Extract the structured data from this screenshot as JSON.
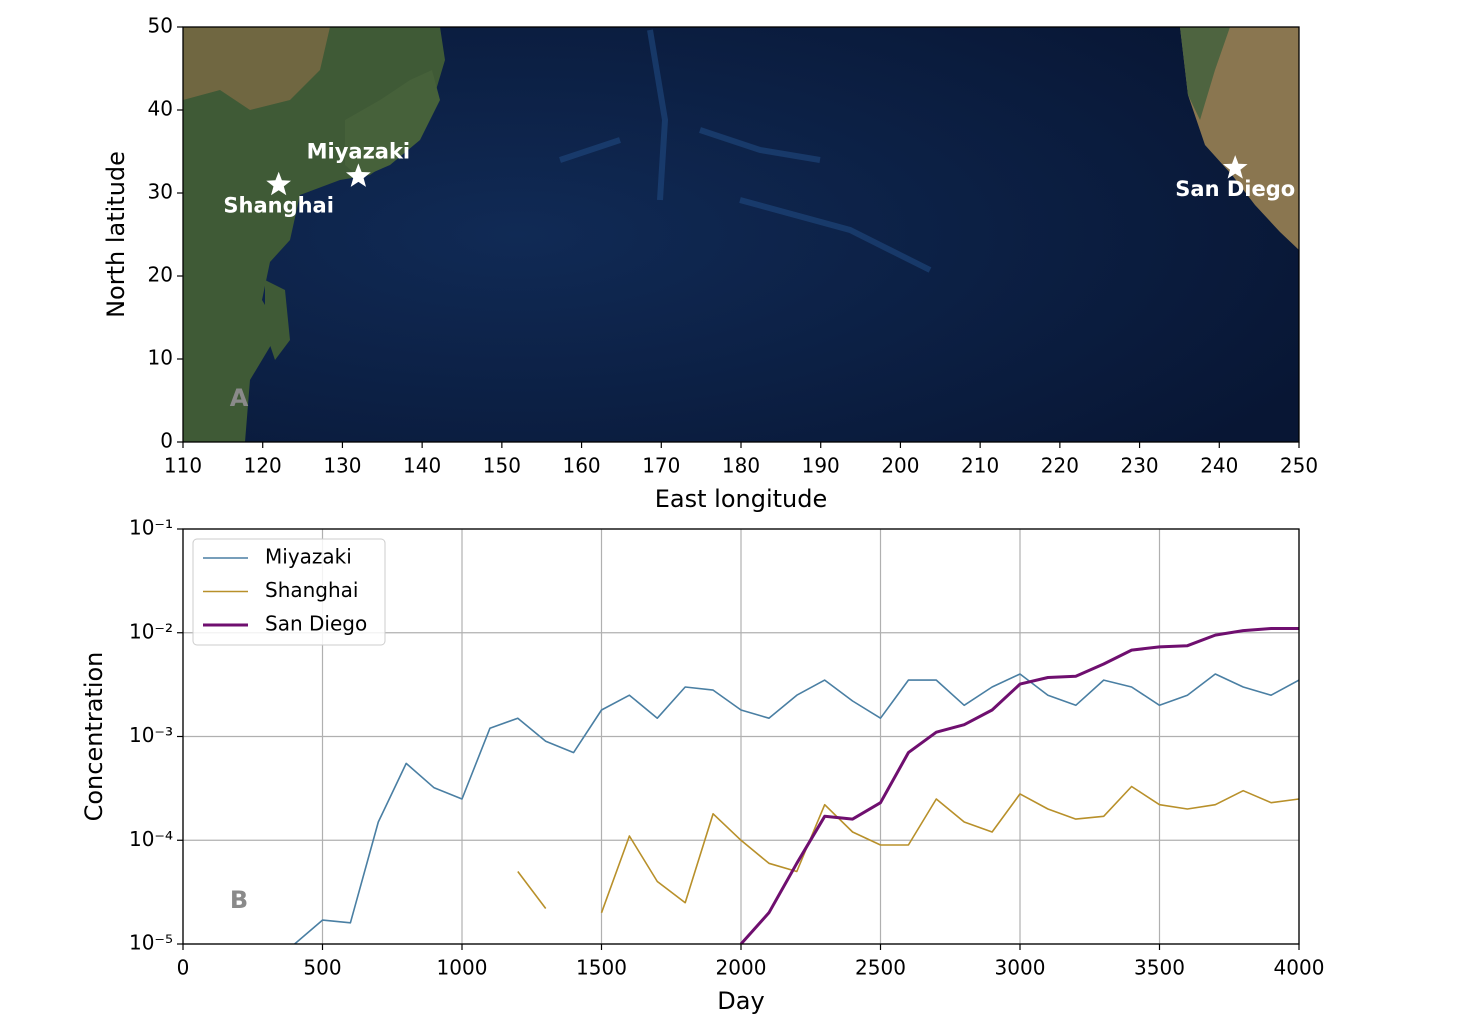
{
  "chart_data": [
    {
      "type": "scatter",
      "xlabel": "East longitude",
      "ylabel": "North latitude",
      "panel_label": "A",
      "xlim": [
        110,
        250
      ],
      "xticks": [
        110,
        120,
        130,
        140,
        150,
        160,
        170,
        180,
        190,
        200,
        210,
        220,
        230,
        240,
        250
      ],
      "ylim": [
        0,
        50
      ],
      "yticks": [
        0,
        10,
        20,
        30,
        40,
        50
      ],
      "marker_color": "#ffffff",
      "points": [
        {
          "label": "Miyazaki",
          "x": 132,
          "y": 32
        },
        {
          "label": "Shanghai",
          "x": 122,
          "y": 31
        },
        {
          "label": "San Diego",
          "x": 242,
          "y": 33
        }
      ]
    },
    {
      "type": "line",
      "xlabel": "Day",
      "ylabel": "Concentration",
      "panel_label": "B",
      "log_y": true,
      "grid": true,
      "legend": "upper left",
      "xlim": [
        0,
        4000
      ],
      "xticks": [
        0,
        500,
        1000,
        1500,
        2000,
        2500,
        3000,
        3500,
        4000
      ],
      "ylim": [
        1e-05,
        0.1
      ],
      "yticks": [
        {
          "value": 1e-05,
          "label": "10⁻⁵"
        },
        {
          "value": 0.0001,
          "label": "10⁻⁴"
        },
        {
          "value": 0.001,
          "label": "10⁻³"
        },
        {
          "value": 0.01,
          "label": "10⁻²"
        },
        {
          "value": 0.1,
          "label": "10⁻¹"
        }
      ],
      "x": [
        0,
        100,
        200,
        300,
        400,
        500,
        600,
        700,
        800,
        900,
        1000,
        1100,
        1200,
        1300,
        1400,
        1500,
        1600,
        1700,
        1800,
        1900,
        2000,
        2100,
        2200,
        2300,
        2400,
        2500,
        2600,
        2700,
        2800,
        2900,
        3000,
        3100,
        3200,
        3300,
        3400,
        3500,
        3600,
        3700,
        3800,
        3900,
        4000
      ],
      "series": [
        {
          "name": "Miyazaki",
          "color": "#4a7fa3",
          "width": 1.6,
          "values": [
            null,
            null,
            null,
            null,
            1e-05,
            1.7e-05,
            1.6e-05,
            0.00015,
            0.00055,
            0.00032,
            0.00025,
            0.0012,
            0.0015,
            0.0009,
            0.0007,
            0.0018,
            0.0025,
            0.0015,
            0.003,
            0.0028,
            0.0018,
            0.0015,
            0.0025,
            0.0035,
            0.0022,
            0.0015,
            0.0035,
            0.0035,
            0.002,
            0.003,
            0.004,
            0.0025,
            0.002,
            0.0035,
            0.003,
            0.002,
            0.0025,
            0.004,
            0.003,
            0.0025,
            0.0035
          ]
        },
        {
          "name": "Shanghai",
          "color": "#b8902a",
          "width": 1.6,
          "values": [
            null,
            null,
            null,
            null,
            null,
            null,
            null,
            null,
            null,
            null,
            null,
            null,
            5e-05,
            2.2e-05,
            null,
            2e-05,
            0.00011,
            4e-05,
            2.5e-05,
            0.00018,
            0.0001,
            6e-05,
            5e-05,
            0.00022,
            0.00012,
            9e-05,
            9e-05,
            0.00025,
            0.00015,
            0.00012,
            0.00028,
            0.0002,
            0.00016,
            0.00017,
            0.00033,
            0.00022,
            0.0002,
            0.00022,
            0.0003,
            0.00023,
            0.00025
          ]
        },
        {
          "name": "San Diego",
          "color": "#6f0f6f",
          "width": 3,
          "values": [
            null,
            null,
            null,
            null,
            null,
            null,
            null,
            null,
            null,
            null,
            null,
            null,
            null,
            null,
            null,
            null,
            null,
            null,
            null,
            null,
            1e-05,
            2e-05,
            6e-05,
            0.00017,
            0.00016,
            0.00023,
            0.0007,
            0.0011,
            0.0013,
            0.0018,
            0.0032,
            0.0037,
            0.0038,
            0.005,
            0.0068,
            0.0073,
            0.0075,
            0.0095,
            0.0105,
            0.011,
            0.011
          ]
        }
      ]
    }
  ]
}
